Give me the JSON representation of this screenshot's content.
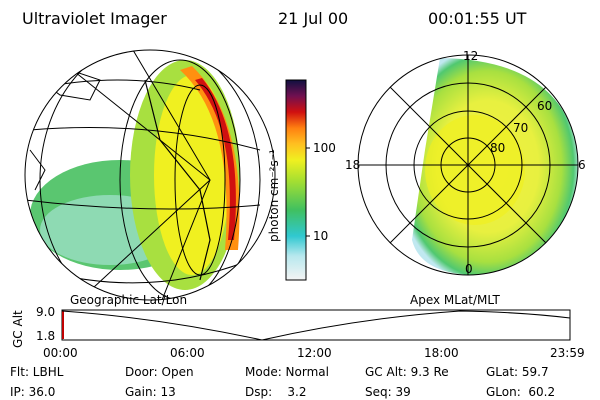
{
  "header": {
    "title": "Ultraviolet Imager",
    "date": "21 Jul 00",
    "time": "00:01:55 UT"
  },
  "colorbar": {
    "label": "photon cm⁻²s⁻¹",
    "ticks": [
      "100",
      "10"
    ]
  },
  "left_map": {
    "caption": "Geographic Lat/Lon"
  },
  "right_map": {
    "caption": "Apex MLat/MLT",
    "mlt_labels": [
      "12",
      "18",
      "6",
      "0"
    ],
    "lat_labels": [
      "60",
      "70",
      "80"
    ]
  },
  "altitude_plot": {
    "ylabel": "GC Alt",
    "yticks": [
      "9.0",
      "1.8"
    ],
    "xticks": [
      "00:00",
      "06:00",
      "12:00",
      "18:00",
      "23:59"
    ]
  },
  "info": [
    [
      "Flt: LBHL",
      "Door: Open",
      "Mode: Normal",
      "GC Alt: 9.3 Re",
      "GLat: 59.7"
    ],
    [
      "IP: 36.0",
      "Gain: 13",
      "Dsp:    3.2",
      "Seq: 39",
      "GLon:  60.2"
    ]
  ]
}
